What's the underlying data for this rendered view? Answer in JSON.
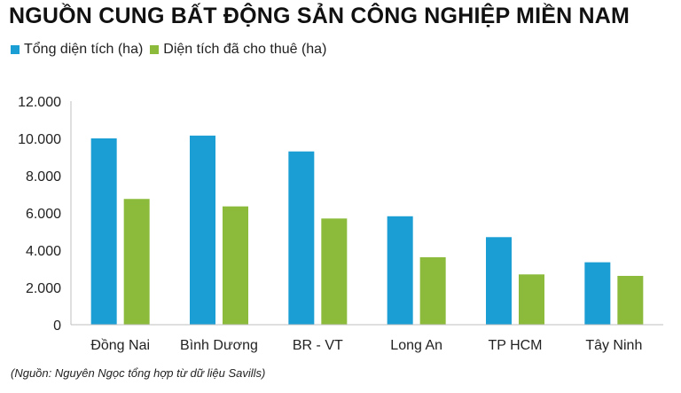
{
  "title": "NGUỒN CUNG BẤT ĐỘNG SẢN CÔNG NGHIỆP MIỀN NAM",
  "legend": [
    {
      "label": "Tổng diện tích (ha)",
      "color": "#1a9ed4"
    },
    {
      "label": "Diện tích đã cho thuê (ha)",
      "color": "#8cbb3c"
    }
  ],
  "source": "(Nguồn: Nguyên Ngọc tổng hợp từ dữ liệu Savills)",
  "chart_data": {
    "type": "bar",
    "categories": [
      "Đồng Nai",
      "Bình Dương",
      "BR - VT",
      "Long An",
      "TP HCM",
      "Tây Ninh"
    ],
    "series": [
      {
        "name": "Tổng diện tích (ha)",
        "values": [
          10000,
          10150,
          9300,
          5820,
          4700,
          3350
        ],
        "color": "#1a9ed4"
      },
      {
        "name": "Diện tích đã cho thuê (ha)",
        "values": [
          6750,
          6350,
          5700,
          3620,
          2700,
          2620
        ],
        "color": "#8cbb3c"
      }
    ],
    "ylim": [
      0,
      12000
    ],
    "yticks": [
      "0",
      "2.000",
      "4.000",
      "6.000",
      "8.000",
      "10.000",
      "12.000"
    ],
    "grid": false,
    "legend_position": "top-left"
  }
}
